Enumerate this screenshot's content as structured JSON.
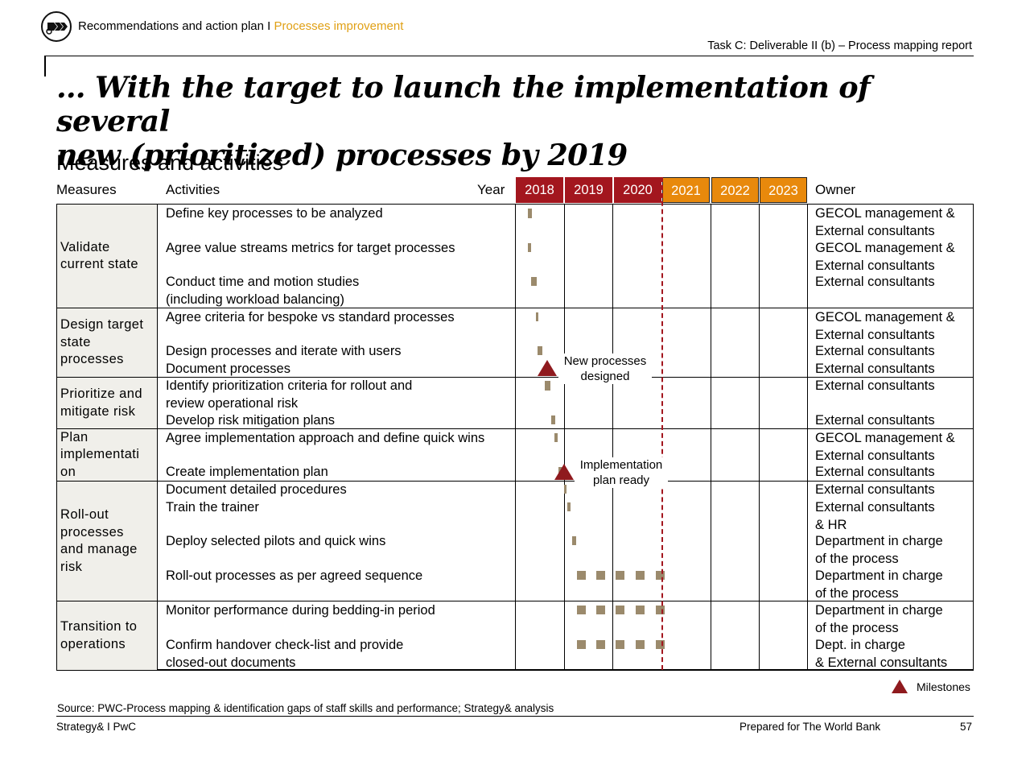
{
  "header": {
    "breadcrumb_main": "Recommendations and action plan I",
    "breadcrumb_accent": "Processes improvement",
    "task_label": "Task C: Deliverable II (b) – Process mapping report",
    "logo_icon": "strategy-and-logo-icon"
  },
  "title": {
    "line1": "… With the target to launch the implementation of several",
    "line2": "new (prioritized) processes by 2019"
  },
  "section_title": "Measures and activities",
  "table": {
    "headers": {
      "measures": "Measures",
      "activities": "Activities",
      "year": "Year",
      "owner": "Owner"
    },
    "years": [
      "2018",
      "2019",
      "2020",
      "2021",
      "2022",
      "2023"
    ],
    "colors": {
      "past_year": "#a3161e",
      "future_year": "#e8890c",
      "bar": "#9b8a6c",
      "milestone": "#8f1a1e",
      "measure_bg": "#f0efea"
    },
    "measures": [
      "Validate\ncurrent state",
      "Design target\nstate\nprocesses",
      "Prioritize and\nmitigate risk",
      "Plan\nimplementati\non",
      "Roll-out\nprocesses\nand manage\nrisk",
      "Transition to\noperations"
    ],
    "activities": [
      "Define key processes to be analyzed",
      "Agree value streams metrics for target processes",
      "Conduct time and motion studies\n(including workload balancing)",
      "Agree criteria for bespoke vs standard processes",
      "Design processes and iterate with users",
      "Document processes",
      "Identify prioritization criteria for rollout and\nreview operational risk",
      "Develop risk mitigation plans",
      "Agree implementation approach and define quick wins",
      "Create implementation plan",
      "Document detailed procedures",
      "Train the trainer",
      "Deploy selected pilots and quick wins",
      "Roll-out processes as per agreed sequence",
      "Monitor performance during bedding-in period",
      "Confirm handover check-list and provide\nclosed-out documents"
    ],
    "owners": [
      "GECOL management &\nExternal consultants",
      "GECOL management &\nExternal consultants",
      "External consultants",
      "GECOL management &\nExternal consultants",
      "External consultants",
      "External consultants",
      "External consultants",
      "External consultants",
      "GECOL management &\nExternal consultants",
      "External consultants",
      "External consultants",
      "External consultants\n& HR",
      "Department in charge\nof the process",
      "Department in charge\nof the process",
      "Department in charge\nof the process",
      "Dept. in charge\n& External consultants"
    ],
    "milestones": [
      "New processes\ndesigned",
      "Implementation\nplan ready"
    ]
  },
  "legend": {
    "milestones": "Milestones"
  },
  "source": "Source: PWC-Process mapping & identification gaps of staff skills and performance; Strategy& analysis",
  "footer": {
    "left": "Strategy& I PwC",
    "middle": "Prepared for The World Bank",
    "page": "57"
  }
}
